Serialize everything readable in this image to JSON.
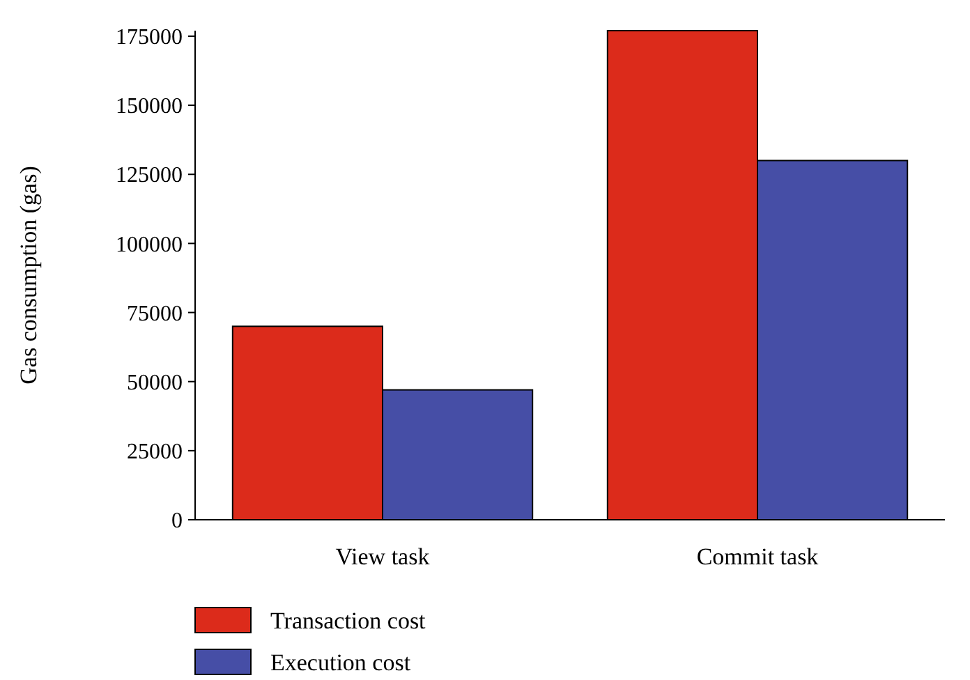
{
  "chart_data": {
    "type": "bar",
    "ylabel": "Gas consumption (gas)",
    "categories": [
      "View task",
      "Commit task"
    ],
    "series": [
      {
        "name": "Transaction cost",
        "color": "#dc2b1b",
        "values": [
          70000,
          177000
        ]
      },
      {
        "name": "Execution cost",
        "color": "#464ea6",
        "values": [
          47000,
          130000
        ]
      }
    ],
    "ylim": [
      0,
      177000
    ],
    "yticks": [
      0,
      25000,
      50000,
      75000,
      100000,
      125000,
      150000,
      175000
    ],
    "grid": false,
    "legend": "bottom left"
  }
}
